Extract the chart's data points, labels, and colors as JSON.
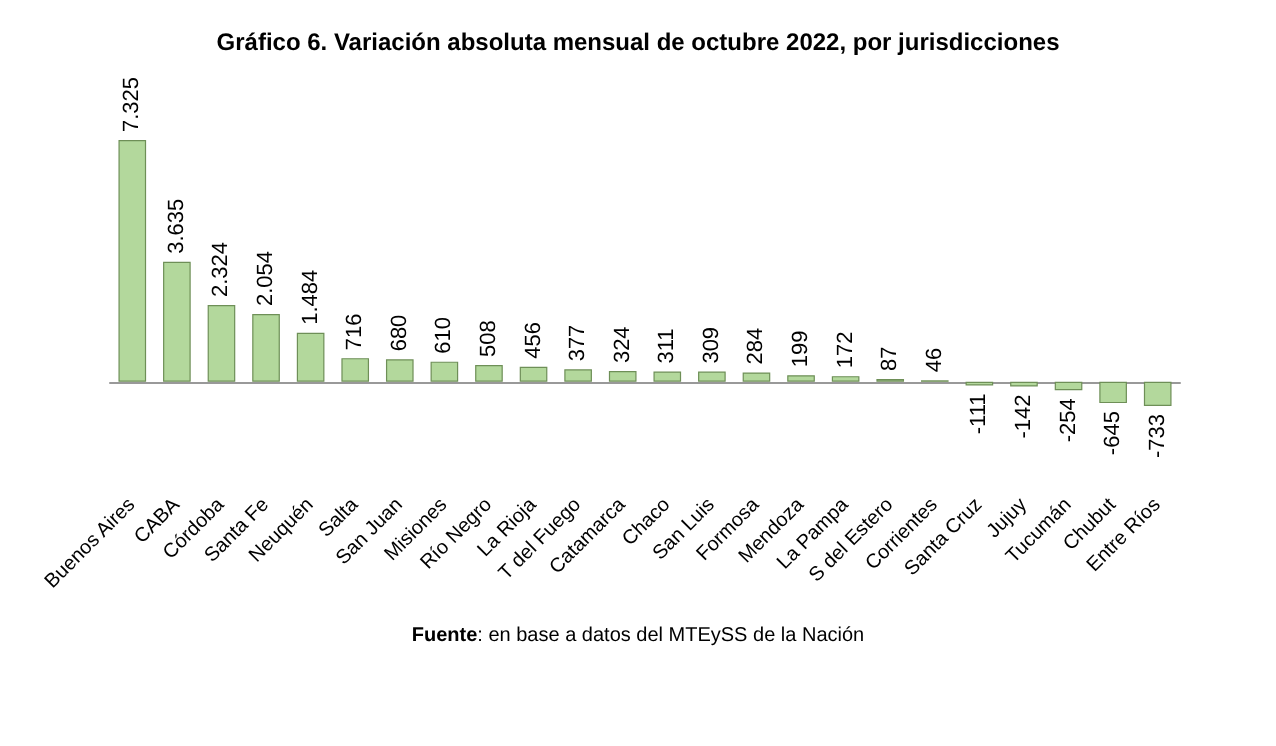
{
  "chart_data": {
    "type": "bar",
    "title": "Gráfico 6. Variación absoluta mensual de octubre 2022, por jurisdicciones",
    "categories": [
      "Buenos Aires",
      "CABA",
      "Córdoba",
      "Santa Fe",
      "Neuquén",
      "Salta",
      "San Juan",
      "Misiones",
      "Río Negro",
      "La Rioja",
      "T del Fuego",
      "Catamarca",
      "Chaco",
      "San Luis",
      "Formosa",
      "Mendoza",
      "La Pampa",
      "S del Estero",
      "Corrientes",
      "Santa Cruz",
      "Jujuy",
      "Tucumán",
      "Chubut",
      "Entre Ríos"
    ],
    "values": [
      7325,
      3635,
      2324,
      2054,
      1484,
      716,
      680,
      610,
      508,
      456,
      377,
      324,
      311,
      309,
      284,
      199,
      172,
      87,
      46,
      -111,
      -142,
      -254,
      -645,
      -733
    ],
    "value_labels": [
      "7.325",
      "3.635",
      "2.324",
      "2.054",
      "1.484",
      "716",
      "680",
      "610",
      "508",
      "456",
      "377",
      "324",
      "311",
      "309",
      "284",
      "199",
      "172",
      "87",
      "46",
      "-111",
      "-142",
      "-254",
      "-645",
      "-733"
    ],
    "color": "#b3d89c",
    "annotations": [
      "Fuente: en base a datos del MTEySS de la Nación"
    ]
  }
}
